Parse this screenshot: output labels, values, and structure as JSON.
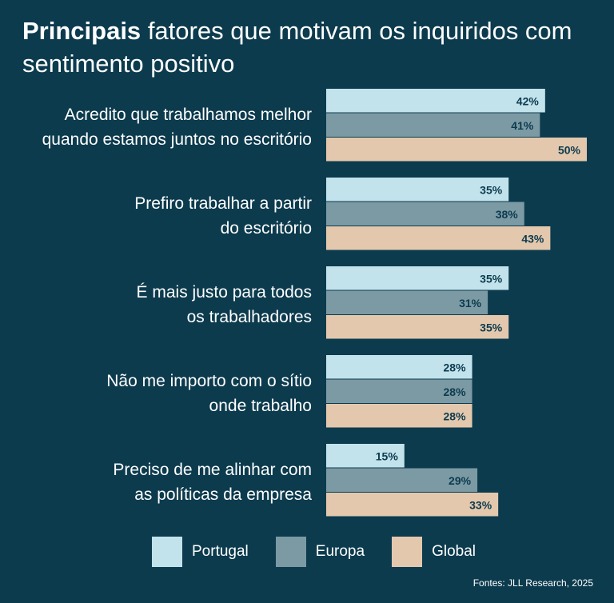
{
  "title": {
    "bold": "Principais",
    "rest": "fatores que motivam os inquiridos com sentimento positivo"
  },
  "chart_data": {
    "type": "bar",
    "orientation": "horizontal",
    "categories": [
      [
        "Acredito que trabalhamos melhor",
        "quando estamos juntos no escritório"
      ],
      [
        "Prefiro trabalhar a partir",
        "do escritório"
      ],
      [
        "É mais justo para todos",
        "os trabalhadores"
      ],
      [
        "Não me importo com o sítio",
        "onde trabalho"
      ],
      [
        "Preciso de me alinhar com",
        "as políticas da empresa"
      ]
    ],
    "series": [
      {
        "name": "Portugal",
        "values": [
          42,
          35,
          35,
          28,
          15
        ],
        "color": "#c2e3ec"
      },
      {
        "name": "Europa",
        "values": [
          41,
          38,
          31,
          28,
          29
        ],
        "color": "#7b9aa4"
      },
      {
        "name": "Global",
        "values": [
          50,
          43,
          35,
          28,
          33
        ],
        "color": "#e3c8ad"
      }
    ],
    "value_suffix": "%",
    "grid": false,
    "legend_position": "bottom"
  },
  "source": "Fontes: JLL Research, 2025"
}
